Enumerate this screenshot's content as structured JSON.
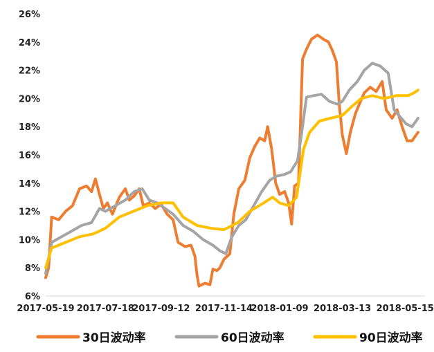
{
  "chart_data": {
    "type": "line",
    "title": "",
    "xlabel": "",
    "ylabel": "",
    "ylim": [
      6,
      26
    ],
    "y_unit": "%",
    "y_ticks": [
      "6%",
      "8%",
      "10%",
      "12%",
      "14%",
      "16%",
      "18%",
      "20%",
      "22%",
      "24%",
      "26%"
    ],
    "y_tick_values": [
      6,
      8,
      10,
      12,
      14,
      16,
      18,
      20,
      22,
      24,
      26
    ],
    "x_tick_labels": [
      "2017-05-19",
      "2017-07-18",
      "2017-09-12",
      "2017-11-14",
      "2018-01-09",
      "2018-03-13",
      "2018-05-15"
    ],
    "x_range": [
      "2017-05-19",
      "2018-06-04"
    ],
    "grid": false,
    "legend_position": "bottom",
    "series": [
      {
        "name": "30日波动率",
        "color": "#ED7D31",
        "points": [
          [
            "2017-05-19",
            7.3
          ],
          [
            "2017-05-22",
            8.0
          ],
          [
            "2017-05-25",
            11.6
          ],
          [
            "2017-06-01",
            11.4
          ],
          [
            "2017-06-08",
            12.0
          ],
          [
            "2017-06-15",
            12.4
          ],
          [
            "2017-06-22",
            13.6
          ],
          [
            "2017-06-29",
            13.8
          ],
          [
            "2017-07-04",
            13.4
          ],
          [
            "2017-07-08",
            14.3
          ],
          [
            "2017-07-12",
            13.2
          ],
          [
            "2017-07-16",
            12.2
          ],
          [
            "2017-07-20",
            12.6
          ],
          [
            "2017-07-25",
            11.8
          ],
          [
            "2017-08-01",
            13.0
          ],
          [
            "2017-08-07",
            13.6
          ],
          [
            "2017-08-11",
            12.8
          ],
          [
            "2017-08-16",
            13.1
          ],
          [
            "2017-08-21",
            13.6
          ],
          [
            "2017-08-25",
            12.4
          ],
          [
            "2017-08-31",
            12.6
          ],
          [
            "2017-09-06",
            12.2
          ],
          [
            "2017-09-12",
            12.5
          ],
          [
            "2017-09-18",
            11.8
          ],
          [
            "2017-09-24",
            11.4
          ],
          [
            "2017-09-29",
            9.8
          ],
          [
            "2017-10-06",
            9.5
          ],
          [
            "2017-10-12",
            9.6
          ],
          [
            "2017-10-16",
            8.8
          ],
          [
            "2017-10-18",
            7.5
          ],
          [
            "2017-10-20",
            6.7
          ],
          [
            "2017-10-26",
            6.9
          ],
          [
            "2017-10-31",
            6.8
          ],
          [
            "2017-11-03",
            7.9
          ],
          [
            "2017-11-07",
            7.8
          ],
          [
            "2017-11-10",
            8.0
          ],
          [
            "2017-11-14",
            8.6
          ],
          [
            "2017-11-20",
            9.0
          ],
          [
            "2017-11-24",
            11.8
          ],
          [
            "2017-11-29",
            13.6
          ],
          [
            "2017-12-05",
            14.2
          ],
          [
            "2017-12-10",
            15.8
          ],
          [
            "2017-12-15",
            16.6
          ],
          [
            "2017-12-20",
            17.2
          ],
          [
            "2017-12-25",
            17.0
          ],
          [
            "2017-12-28",
            18.0
          ],
          [
            "2018-01-01",
            16.4
          ],
          [
            "2018-01-05",
            14.0
          ],
          [
            "2018-01-09",
            13.2
          ],
          [
            "2018-01-14",
            13.4
          ],
          [
            "2018-01-18",
            12.6
          ],
          [
            "2018-01-21",
            11.1
          ],
          [
            "2018-01-24",
            13.8
          ],
          [
            "2018-01-28",
            14.0
          ],
          [
            "2018-02-01",
            22.8
          ],
          [
            "2018-02-05",
            23.5
          ],
          [
            "2018-02-10",
            24.2
          ],
          [
            "2018-02-16",
            24.5
          ],
          [
            "2018-02-22",
            24.2
          ],
          [
            "2018-02-27",
            24.0
          ],
          [
            "2018-03-03",
            23.4
          ],
          [
            "2018-03-07",
            22.6
          ],
          [
            "2018-03-10",
            19.5
          ],
          [
            "2018-03-13",
            17.4
          ],
          [
            "2018-03-17",
            16.1
          ],
          [
            "2018-03-21",
            17.6
          ],
          [
            "2018-03-26",
            18.9
          ],
          [
            "2018-03-30",
            19.6
          ],
          [
            "2018-04-04",
            20.4
          ],
          [
            "2018-04-10",
            20.8
          ],
          [
            "2018-04-16",
            20.5
          ],
          [
            "2018-04-22",
            21.2
          ],
          [
            "2018-04-26",
            19.2
          ],
          [
            "2018-05-02",
            18.6
          ],
          [
            "2018-05-07",
            19.2
          ],
          [
            "2018-05-12",
            18.0
          ],
          [
            "2018-05-17",
            17.0
          ],
          [
            "2018-05-22",
            17.0
          ],
          [
            "2018-05-28",
            17.6
          ]
        ]
      },
      {
        "name": "60日波动率",
        "color": "#A5A5A5",
        "points": [
          [
            "2017-05-19",
            7.6
          ],
          [
            "2017-05-25",
            9.8
          ],
          [
            "2017-06-04",
            10.2
          ],
          [
            "2017-06-14",
            10.6
          ],
          [
            "2017-06-24",
            11.0
          ],
          [
            "2017-07-04",
            11.2
          ],
          [
            "2017-07-12",
            12.2
          ],
          [
            "2017-07-18",
            12.0
          ],
          [
            "2017-07-28",
            12.4
          ],
          [
            "2017-08-07",
            12.8
          ],
          [
            "2017-08-16",
            13.4
          ],
          [
            "2017-08-24",
            13.6
          ],
          [
            "2017-08-31",
            12.8
          ],
          [
            "2017-09-08",
            12.6
          ],
          [
            "2017-09-16",
            12.2
          ],
          [
            "2017-09-24",
            11.8
          ],
          [
            "2017-10-04",
            11.0
          ],
          [
            "2017-10-14",
            10.6
          ],
          [
            "2017-10-24",
            10.0
          ],
          [
            "2017-11-03",
            9.6
          ],
          [
            "2017-11-10",
            9.2
          ],
          [
            "2017-11-16",
            9.0
          ],
          [
            "2017-11-22",
            10.2
          ],
          [
            "2017-11-29",
            11.0
          ],
          [
            "2017-12-06",
            11.4
          ],
          [
            "2017-12-14",
            12.4
          ],
          [
            "2017-12-22",
            13.4
          ],
          [
            "2017-12-30",
            14.2
          ],
          [
            "2018-01-06",
            14.5
          ],
          [
            "2018-01-13",
            14.6
          ],
          [
            "2018-01-20",
            14.8
          ],
          [
            "2018-01-27",
            15.6
          ],
          [
            "2018-02-01",
            18.0
          ],
          [
            "2018-02-05",
            20.1
          ],
          [
            "2018-02-12",
            20.2
          ],
          [
            "2018-02-20",
            20.3
          ],
          [
            "2018-02-28",
            19.8
          ],
          [
            "2018-03-08",
            19.6
          ],
          [
            "2018-03-13",
            19.8
          ],
          [
            "2018-03-20",
            20.6
          ],
          [
            "2018-03-28",
            21.2
          ],
          [
            "2018-04-04",
            22.0
          ],
          [
            "2018-04-12",
            22.5
          ],
          [
            "2018-04-20",
            22.3
          ],
          [
            "2018-04-28",
            21.8
          ],
          [
            "2018-05-04",
            19.2
          ],
          [
            "2018-05-10",
            18.7
          ],
          [
            "2018-05-16",
            18.2
          ],
          [
            "2018-05-22",
            18.0
          ],
          [
            "2018-05-28",
            18.6
          ]
        ]
      },
      {
        "name": "90日波动率",
        "color": "#FFC000",
        "points": [
          [
            "2017-05-19",
            8.0
          ],
          [
            "2017-05-25",
            9.4
          ],
          [
            "2017-06-08",
            9.8
          ],
          [
            "2017-06-22",
            10.2
          ],
          [
            "2017-07-06",
            10.4
          ],
          [
            "2017-07-18",
            10.8
          ],
          [
            "2017-08-01",
            11.6
          ],
          [
            "2017-08-15",
            12.0
          ],
          [
            "2017-08-29",
            12.4
          ],
          [
            "2017-09-12",
            12.6
          ],
          [
            "2017-09-24",
            12.6
          ],
          [
            "2017-10-04",
            11.6
          ],
          [
            "2017-10-18",
            11.0
          ],
          [
            "2017-11-01",
            10.8
          ],
          [
            "2017-11-14",
            10.7
          ],
          [
            "2017-11-28",
            11.2
          ],
          [
            "2017-12-10",
            12.0
          ],
          [
            "2017-12-24",
            12.6
          ],
          [
            "2018-01-02",
            13.0
          ],
          [
            "2018-01-09",
            12.6
          ],
          [
            "2018-01-18",
            12.4
          ],
          [
            "2018-01-26",
            13.0
          ],
          [
            "2018-02-02",
            16.4
          ],
          [
            "2018-02-08",
            17.6
          ],
          [
            "2018-02-18",
            18.4
          ],
          [
            "2018-03-01",
            18.6
          ],
          [
            "2018-03-13",
            18.8
          ],
          [
            "2018-03-22",
            19.4
          ],
          [
            "2018-04-01",
            20.0
          ],
          [
            "2018-04-12",
            20.2
          ],
          [
            "2018-04-24",
            20.0
          ],
          [
            "2018-05-06",
            20.2
          ],
          [
            "2018-05-18",
            20.2
          ],
          [
            "2018-05-24",
            20.4
          ],
          [
            "2018-05-28",
            20.6
          ]
        ]
      }
    ]
  }
}
